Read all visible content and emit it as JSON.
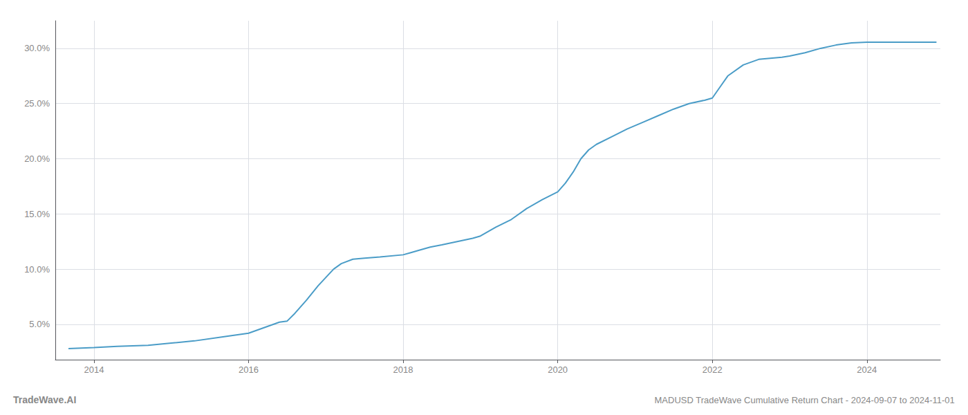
{
  "chart_data": {
    "type": "line",
    "title": "MADUSD TradeWave Cumulative Return Chart - 2024-09-07 to 2024-11-01",
    "annotations": [
      "TradeWave.AI"
    ],
    "color": "#4a9cc7",
    "grid": true,
    "x": [
      2013.67,
      2014.0,
      2014.3,
      2014.7,
      2015.0,
      2015.3,
      2015.7,
      2016.0,
      2016.2,
      2016.4,
      2016.5,
      2016.6,
      2016.75,
      2016.9,
      2017.1,
      2017.2,
      2017.35,
      2017.5,
      2017.7,
      2018.0,
      2018.1,
      2018.2,
      2018.35,
      2018.5,
      2018.7,
      2018.9,
      2019.0,
      2019.2,
      2019.4,
      2019.6,
      2019.8,
      2020.0,
      2020.1,
      2020.2,
      2020.3,
      2020.4,
      2020.5,
      2020.7,
      2020.9,
      2021.1,
      2021.3,
      2021.5,
      2021.7,
      2021.9,
      2022.0,
      2022.1,
      2022.2,
      2022.4,
      2022.6,
      2022.9,
      2023.0,
      2023.2,
      2023.4,
      2023.6,
      2023.8,
      2024.0,
      2024.2,
      2024.5,
      2024.75,
      2024.9
    ],
    "values": [
      2.8,
      2.9,
      3.0,
      3.1,
      3.3,
      3.5,
      3.9,
      4.2,
      4.7,
      5.2,
      5.3,
      6.0,
      7.2,
      8.5,
      10.0,
      10.5,
      10.9,
      11.0,
      11.1,
      11.3,
      11.5,
      11.7,
      12.0,
      12.2,
      12.5,
      12.8,
      13.0,
      13.8,
      14.5,
      15.5,
      16.3,
      17.0,
      17.8,
      18.8,
      20.0,
      20.8,
      21.3,
      22.0,
      22.7,
      23.3,
      23.9,
      24.5,
      25.0,
      25.3,
      25.5,
      26.5,
      27.5,
      28.5,
      29.0,
      29.2,
      29.3,
      29.6,
      30.0,
      30.3,
      30.5,
      30.55,
      30.55,
      30.55,
      30.55,
      30.55
    ],
    "xlim": [
      2013.5,
      2024.95
    ],
    "xticks": [
      2014,
      2016,
      2018,
      2020,
      2022,
      2024
    ],
    "ylim": [
      1.8,
      32.5
    ],
    "yticks": [
      {
        "value": 5.0,
        "label": "5.0%"
      },
      {
        "value": 10.0,
        "label": "10.0%"
      },
      {
        "value": 15.0,
        "label": "15.0%"
      },
      {
        "value": 20.0,
        "label": "20.0%"
      },
      {
        "value": 25.0,
        "label": "25.0%"
      },
      {
        "value": 30.0,
        "label": "30.0%"
      }
    ]
  }
}
